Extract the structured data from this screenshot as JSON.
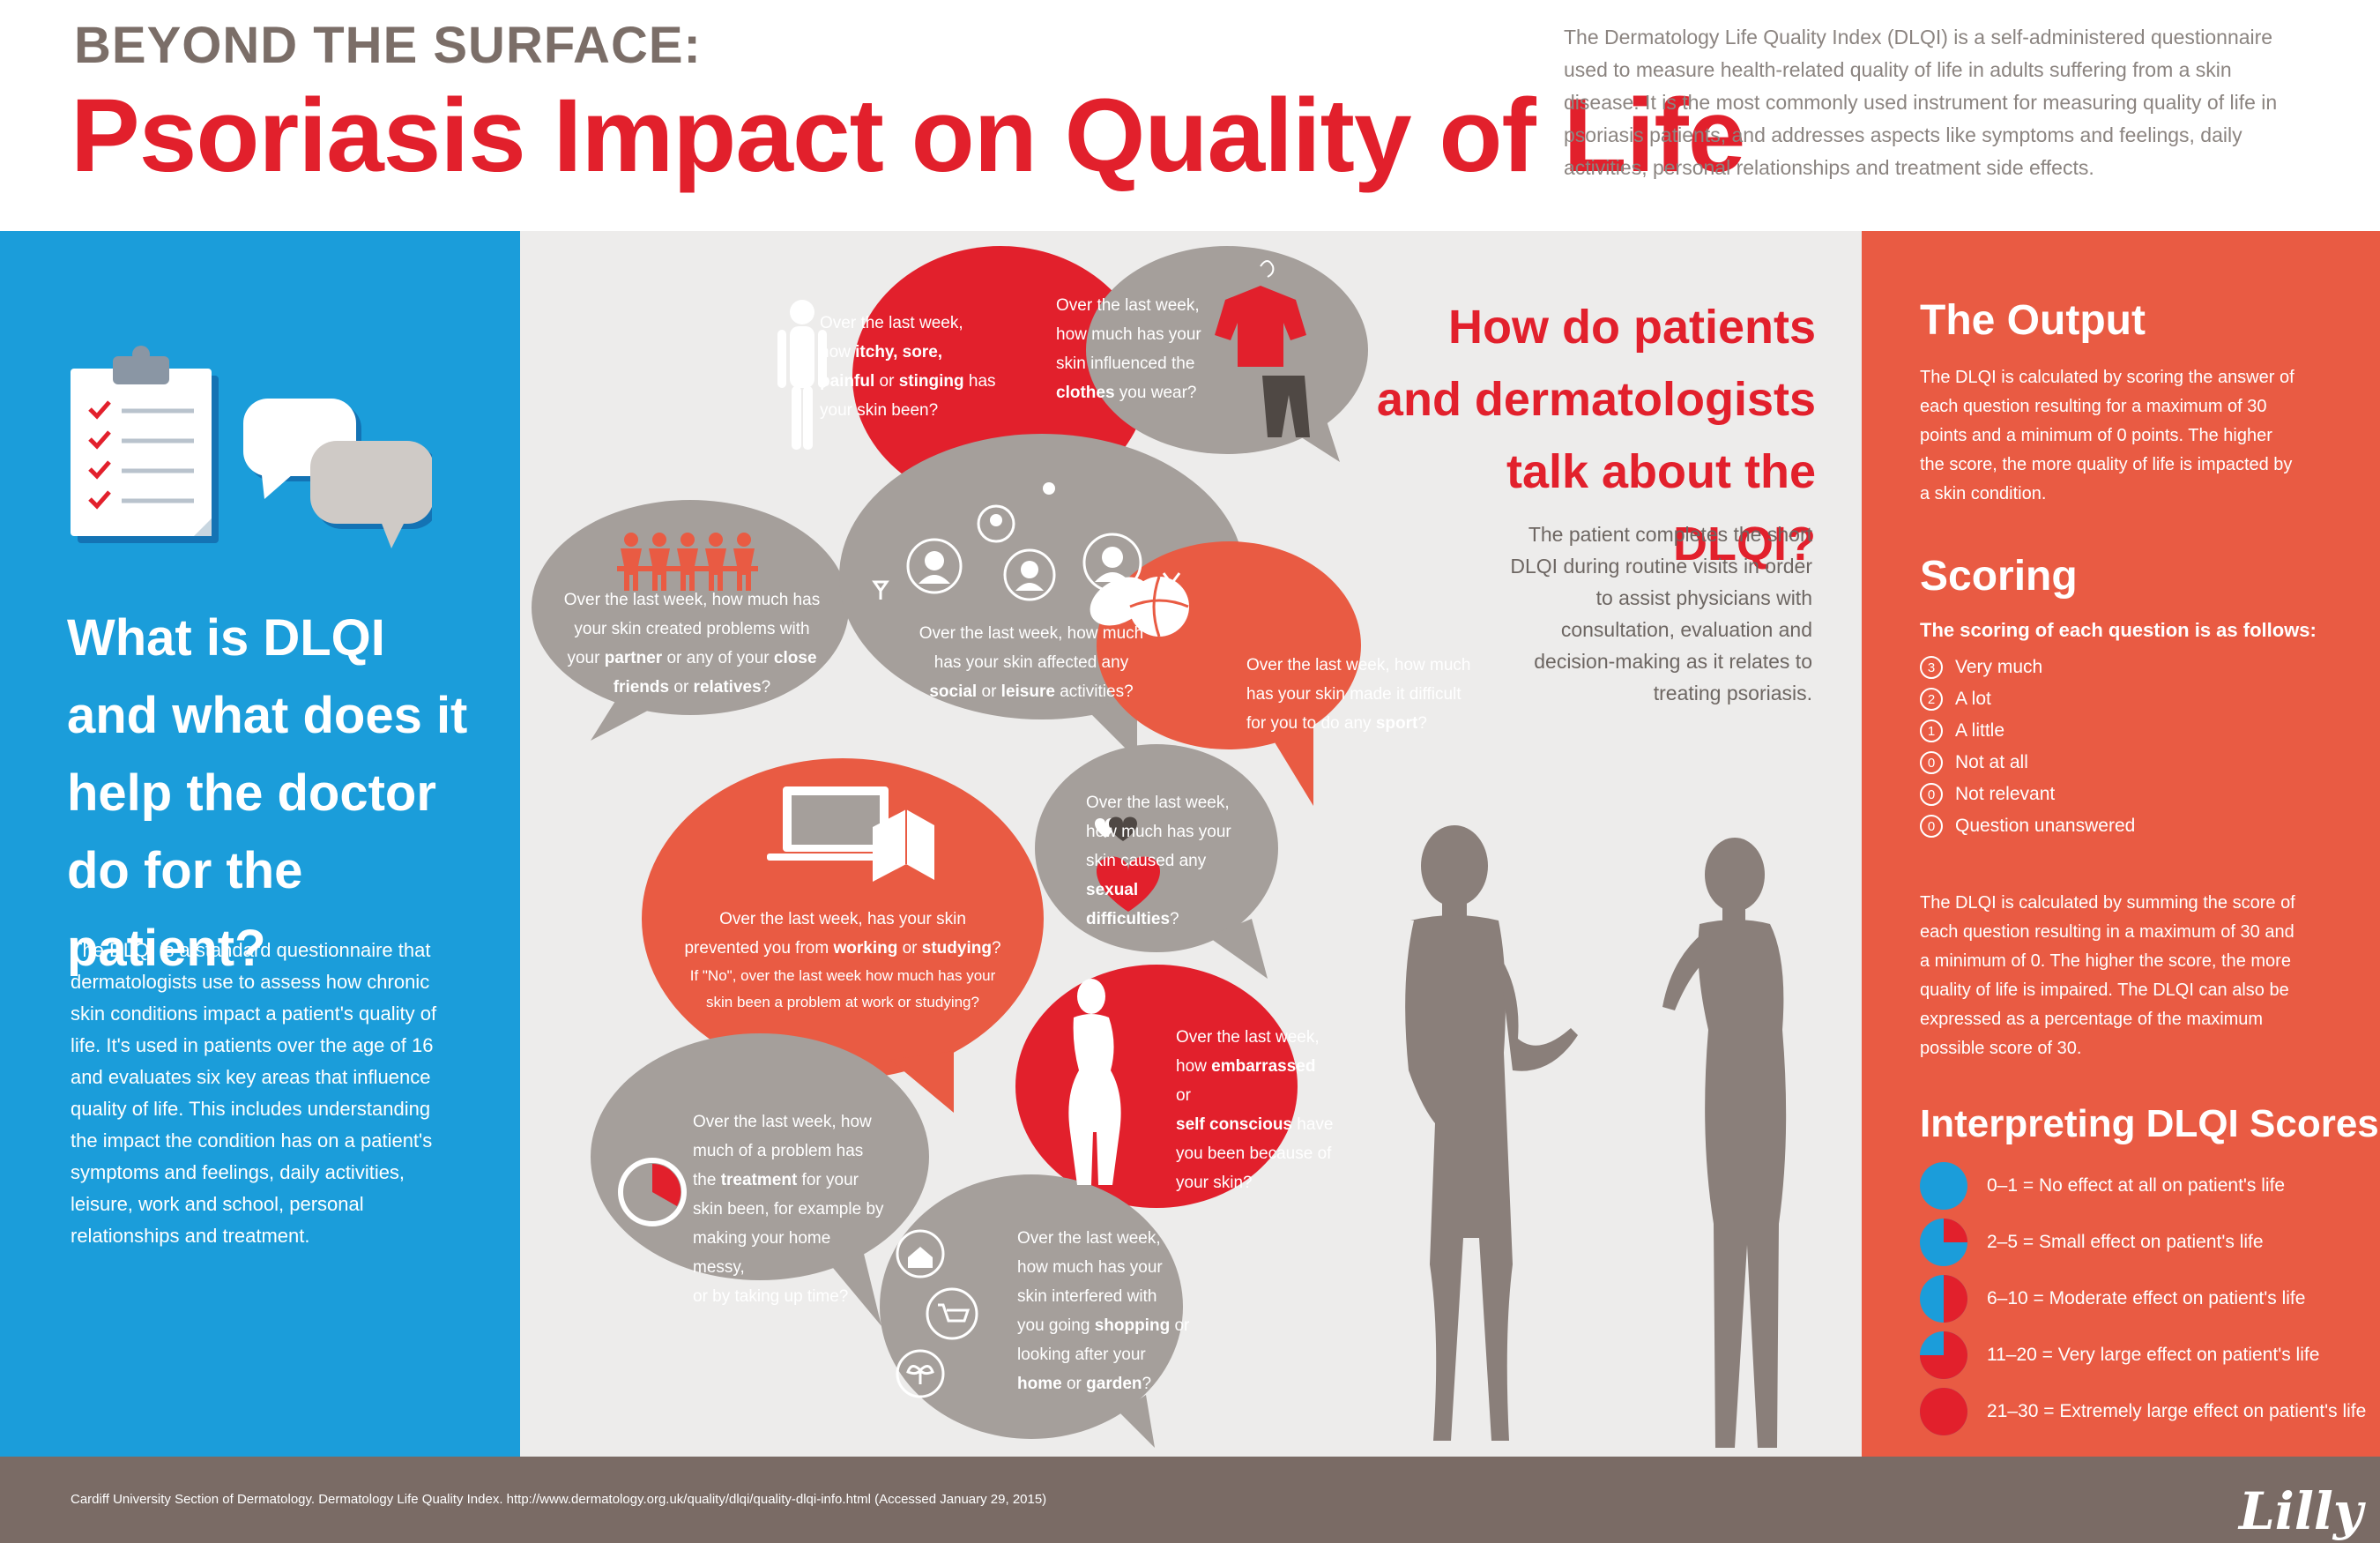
{
  "header": {
    "kicker": "BEYOND THE SURFACE:",
    "title": "Psoriasis Impact on Quality of Life",
    "intro": "The Dermatology Life Quality Index (DLQI) is a self-administered questionnaire used to measure health-related quality of life in adults suffering from a skin disease. It is the most commonly used instrument for measuring quality of life in psoriasis patients, and addresses aspects like symptoms and feelings, daily activities, personal relationships and treatment side effects."
  },
  "left": {
    "heading": "What is DLQI and what does it help the doctor do for the patient?",
    "body": "The DLQI is a standard questionnaire that dermatologists use to assess how chronic skin conditions impact a patient's quality of life. It's used in patients over the age of 16 and evaluates six key areas that influence quality of life. This includes understanding the impact the condition has on a patient's symptoms and feelings, daily activities, leisure, work and school, personal relationships and treatment."
  },
  "middle": {
    "heading": "How do patients and dermatologists talk about the DLQI?",
    "body": "The patient completes the short DLQI during routine visits in order to assist physicians with consultation, evaluation and decision-making as it relates to treating psoriasis.",
    "bubbles": {
      "itchy": {
        "a": "Over the last week,",
        "b": "how ",
        "c": "itchy, sore,",
        "d": "painful",
        "e": " or ",
        "f": "stinging",
        "g": " has",
        "h": "your skin been?"
      },
      "clothes": {
        "a": "Over the last week,",
        "b": "how much has your",
        "c": "skin influenced the",
        "d": "clothes",
        "e": " you wear?"
      },
      "partner": {
        "a": "Over the last week, how much has",
        "b": "your skin created problems with",
        "c": "your ",
        "d": "partner",
        "e": " or any of your ",
        "f": "close",
        "g": "friends",
        "h": " or ",
        "i": "relatives",
        "j": "?"
      },
      "social": {
        "a": "Over the last week, how much",
        "b": "has your skin affected any",
        "c": "social",
        "d": " or ",
        "e": "leisure",
        "f": " activities?"
      },
      "sport": {
        "a": "Over the last week, how much",
        "b": "has your skin made it difficult",
        "c": "for you to do any ",
        "d": "sport",
        "e": "?"
      },
      "work": {
        "a": "Over the last week, has your skin",
        "b": "prevented you from ",
        "c": "working",
        "d": " or ",
        "e": "studying",
        "f": "?",
        "g": "If \"No\", over the last week how much has your",
        "h": "skin been a problem at work or studying?"
      },
      "sexual": {
        "a": "Over the last week,",
        "b": "how much has your",
        "c": "skin caused any",
        "d": "sexual difficulties",
        "e": "?"
      },
      "embarrassed": {
        "a": "Over the last week,",
        "b": "how ",
        "c": "embarrassed",
        "d": " or",
        "e": "self conscious",
        "f": " have",
        "g": "you been because of",
        "h": "your skin?"
      },
      "treatment": {
        "a": "Over the last week, how",
        "b": "much of a problem has",
        "c": "the ",
        "d": "treatment",
        "e": " for your",
        "f": "skin been, for example by",
        "g": "making your home messy,",
        "h": "or by taking up time?"
      },
      "shopping": {
        "a": "Over the last week,",
        "b": "how much has your",
        "c": "skin interfered with",
        "d": "you going ",
        "e": "shopping",
        "f": " or",
        "g": "looking after your",
        "h": "home",
        "i": " or ",
        "j": "garden",
        "k": "?"
      }
    }
  },
  "right": {
    "output_heading": "The Output",
    "output_body": "The DLQI is calculated by scoring the answer of each question resulting for a maximum of 30 points and a minimum of 0 points. The higher the score, the more quality of life is impacted by a skin condition.",
    "scoring_heading": "Scoring",
    "scoring_sub": "The scoring of each question is as follows:",
    "scores": [
      {
        "num": "3",
        "label": "Very much"
      },
      {
        "num": "2",
        "label": "A lot"
      },
      {
        "num": "1",
        "label": "A little"
      },
      {
        "num": "0",
        "label": "Not at all"
      },
      {
        "num": "0",
        "label": "Not relevant"
      },
      {
        "num": "0",
        "label": "Question unanswered"
      }
    ],
    "calc_body": "The DLQI is calculated by summing the score of each question resulting in a maximum of 30 and a minimum of 0. The higher the score, the more quality of life is impaired. The DLQI can also be expressed as a percentage of the maximum possible score of 30.",
    "interp_heading": "Interpreting DLQI Scores",
    "interp": [
      {
        "label": "0–1 = No effect at all on patient's life",
        "fill": 0
      },
      {
        "label": "2–5 = Small effect on patient's life",
        "fill": 0.25
      },
      {
        "label": "6–10 = Moderate effect on patient's life",
        "fill": 0.5
      },
      {
        "label": "11–20 = Very large effect on patient's life",
        "fill": 0.75
      },
      {
        "label": "21–30 = Extremely large effect on patient's life",
        "fill": 1
      }
    ]
  },
  "footer": {
    "citation": "Cardiff University Section of Dermatology. Dermatology Life Quality Index. http://www.dermatology.org.uk/quality/dlqi/quality-dlqi-info.html (Accessed January 29, 2015)",
    "logo": "Lilly"
  },
  "colors": {
    "red": "#e2202c",
    "blue": "#1b9dda",
    "orange": "#e95b43",
    "gray": "#a59f9b",
    "taupe": "#7a6b65"
  }
}
